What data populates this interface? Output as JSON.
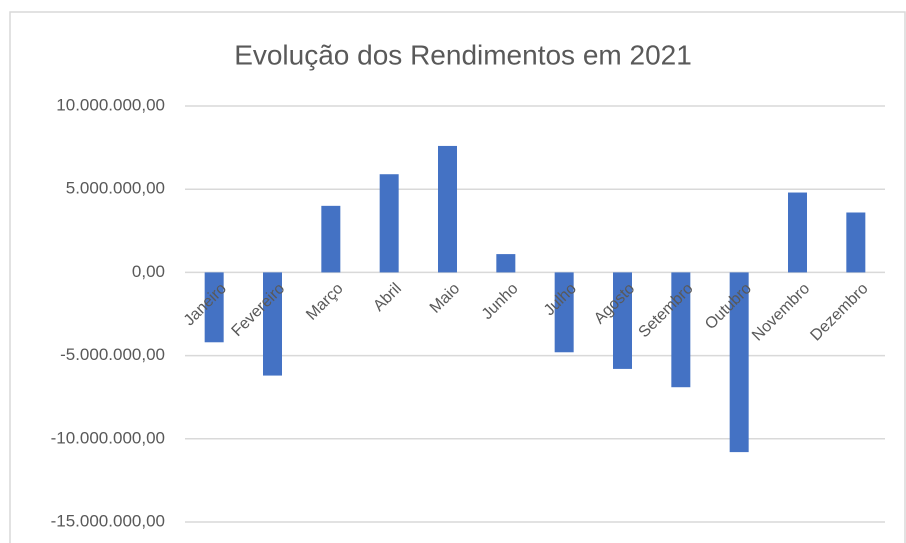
{
  "chart_data": {
    "type": "bar",
    "title": "Evolução dos Rendimentos em 2021",
    "categories": [
      "Janeiro",
      "Fevereiro",
      "Março",
      "Abril",
      "Maio",
      "Junho",
      "Julho",
      "Agosto",
      "Setembro",
      "Outubro",
      "Novembro",
      "Dezembro"
    ],
    "values": [
      -4200000,
      -6200000,
      4000000,
      5900000,
      7600000,
      1100000,
      -4800000,
      -5800000,
      -6900000,
      -10800000,
      4800000,
      3600000
    ],
    "color": "#4472c4",
    "ylim": [
      -15000000,
      10000000
    ],
    "yticks": [
      {
        "value": -15000000,
        "label": "-15.000.000,00"
      },
      {
        "value": -10000000,
        "label": "-10.000.000,00"
      },
      {
        "value": -5000000,
        "label": "-5.000.000,00"
      },
      {
        "value": 0,
        "label": "0,00"
      },
      {
        "value": 5000000,
        "label": "5.000.000,00"
      },
      {
        "value": 10000000,
        "label": "10.000.000,00"
      }
    ],
    "grid": true
  }
}
